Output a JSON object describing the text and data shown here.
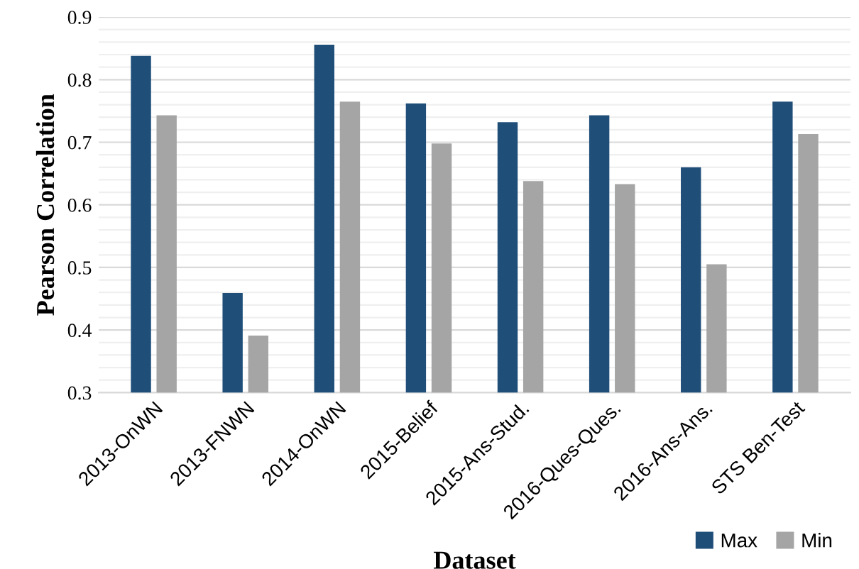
{
  "chart_data": {
    "type": "bar",
    "xlabel": "Dataset",
    "ylabel": "Pearson Correlation",
    "categories": [
      "2013-OnWN",
      "2013-FNWN",
      "2014-OnWN",
      "2015-Belief",
      "2015-Ans-Stud.",
      "2016-Ques-Ques.",
      "2016-Ans-Ans.",
      "STS Ben-Test"
    ],
    "series": [
      {
        "name": "Max",
        "color": "#1f4e79",
        "values": [
          0.838,
          0.459,
          0.856,
          0.762,
          0.732,
          0.743,
          0.66,
          0.765
        ]
      },
      {
        "name": "Min",
        "color": "#a5a5a5",
        "values": [
          0.743,
          0.391,
          0.765,
          0.698,
          0.638,
          0.633,
          0.505,
          0.713
        ]
      }
    ],
    "ylim": [
      0.3,
      0.9
    ],
    "yticks": [
      0.3,
      {
        "value": 0.32,
        "label": null
      },
      {
        "value": 0.34,
        "label": null
      },
      {
        "value": 0.36,
        "label": null
      },
      {
        "value": 0.38,
        "label": null
      },
      0.4,
      {
        "value": 0.42,
        "label": null
      },
      {
        "value": 0.44,
        "label": null
      },
      {
        "value": 0.46,
        "label": null
      },
      {
        "value": 0.48,
        "label": null
      },
      0.5,
      {
        "value": 0.52,
        "label": null
      },
      {
        "value": 0.54,
        "label": null
      },
      {
        "value": 0.56,
        "label": null
      },
      {
        "value": 0.58,
        "label": null
      },
      0.6,
      {
        "value": 0.62,
        "label": null
      },
      {
        "value": 0.64,
        "label": null
      },
      {
        "value": 0.66,
        "label": null
      },
      {
        "value": 0.68,
        "label": null
      },
      0.7,
      {
        "value": 0.72,
        "label": null
      },
      {
        "value": 0.74,
        "label": null
      },
      {
        "value": 0.76,
        "label": null
      },
      {
        "value": 0.78,
        "label": null
      },
      0.8,
      {
        "value": 0.82,
        "label": null
      },
      {
        "value": 0.84,
        "label": null
      },
      {
        "value": 0.86,
        "label": null
      },
      {
        "value": 0.88,
        "label": null
      },
      0.9
    ],
    "grid": "y",
    "legend": "bottom right"
  }
}
